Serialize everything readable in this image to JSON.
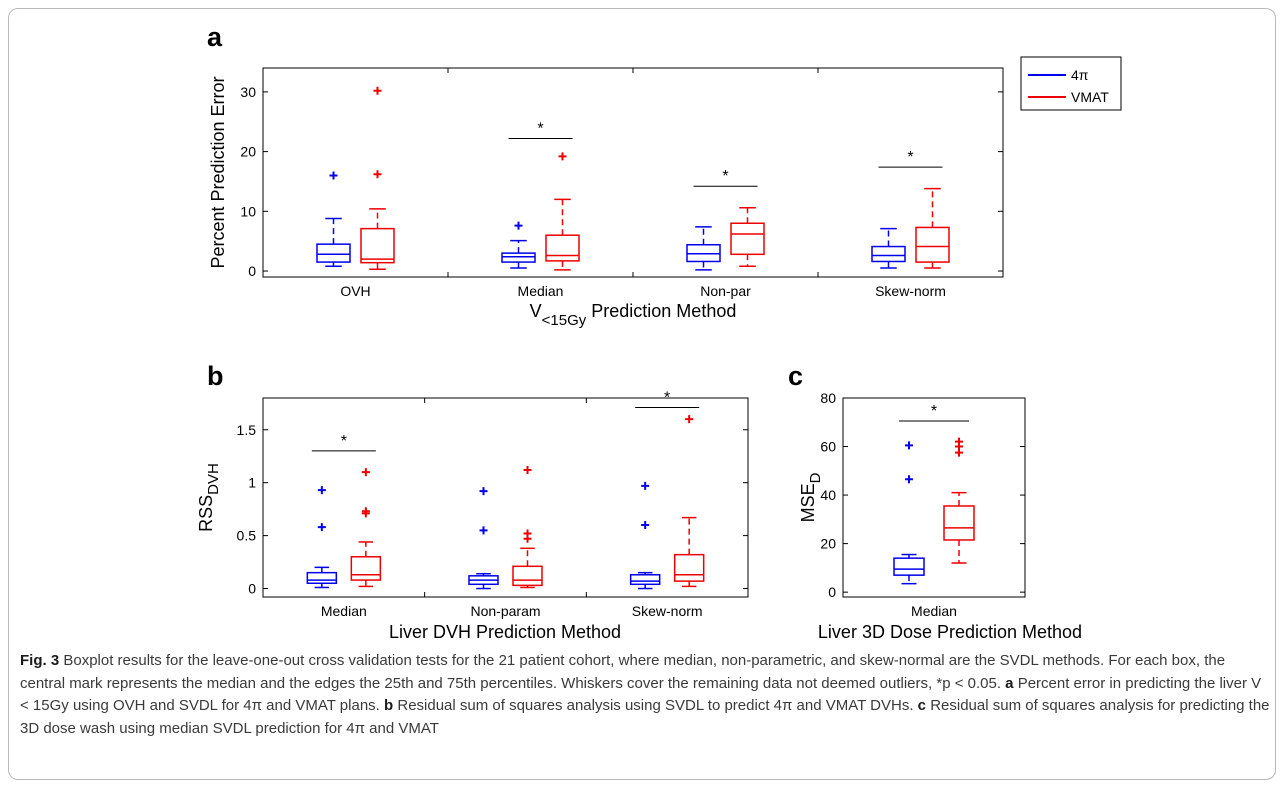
{
  "colors": {
    "pi4": "#0000ee",
    "vmat": "#ee0000",
    "axis": "#000000",
    "caption_text": "#3a3a3a"
  },
  "legend": {
    "items": [
      {
        "name": "4π",
        "color": "#0000ee"
      },
      {
        "name": "VMAT",
        "color": "#ee0000"
      }
    ]
  },
  "caption": {
    "fig_label": "Fig. 3",
    "text": "Boxplot results for the leave-one-out cross validation tests for the 21 patient cohort, where median, non-parametric, and skew-normal are the SVDL methods. For each box, the central mark represents the median and the edges the 25th and 75th percentiles. Whiskers cover the remaining data not deemed outliers, *p < 0.05.",
    "part_a_label": "a",
    "part_a_text": "Percent error in predicting the liver V < 15Gy using OVH and SVDL for 4π and VMAT plans.",
    "part_b_label": "b",
    "part_b_text": "Residual sum of squares analysis using SVDL to predict 4π and VMAT DVHs.",
    "part_c_label": "c",
    "part_c_text": "Residual sum of squares analysis for predicting the 3D dose wash using median SVDL prediction for 4π and VMAT"
  },
  "chart_data": [
    {
      "panel": "a",
      "type": "boxplot",
      "ylabel": "Percent Prediction Error",
      "xlabel": "V<15Gy Prediction Method",
      "xlabel_main": "V",
      "xlabel_sub": "<15Gy",
      "xlabel_rest": " Prediction Method",
      "ylim": [
        -1,
        34
      ],
      "yticks": [
        0,
        10,
        20,
        30
      ],
      "categories": [
        "OVH",
        "Median",
        "Non-par",
        "Skew-norm"
      ],
      "series": [
        {
          "name": "4π",
          "boxes": [
            {
              "min": 0.8,
              "q1": 1.5,
              "median": 2.8,
              "q3": 4.5,
              "max": 8.8,
              "outliers": [
                16
              ]
            },
            {
              "min": 0.5,
              "q1": 1.5,
              "median": 2.4,
              "q3": 3.0,
              "max": 5.1,
              "outliers": [
                7.6
              ]
            },
            {
              "min": 0.2,
              "q1": 1.6,
              "median": 2.9,
              "q3": 4.4,
              "max": 7.4,
              "outliers": []
            },
            {
              "min": 0.5,
              "q1": 1.6,
              "median": 2.6,
              "q3": 4.1,
              "max": 7.1,
              "outliers": []
            }
          ]
        },
        {
          "name": "VMAT",
          "boxes": [
            {
              "min": 0.3,
              "q1": 1.4,
              "median": 2.0,
              "q3": 7.1,
              "max": 10.4,
              "outliers": [
                16.2,
                30.2
              ]
            },
            {
              "min": 0.2,
              "q1": 1.7,
              "median": 2.6,
              "q3": 6.0,
              "max": 12.0,
              "outliers": [
                19.2
              ]
            },
            {
              "min": 0.8,
              "q1": 2.8,
              "median": 6.2,
              "q3": 8.0,
              "max": 10.6,
              "outliers": []
            },
            {
              "min": 0.5,
              "q1": 1.5,
              "median": 4.1,
              "q3": 7.3,
              "max": 13.8,
              "outliers": []
            }
          ]
        }
      ],
      "significance": [
        {
          "category": "Median",
          "level": 22.2
        },
        {
          "category": "Non-par",
          "level": 14.2
        },
        {
          "category": "Skew-norm",
          "level": 17.4
        }
      ],
      "sig_marker": "*"
    },
    {
      "panel": "b",
      "type": "boxplot",
      "ylabel": "RSS_DVH",
      "ylabel_main": "RSS",
      "ylabel_sub": "DVH",
      "xlabel": "Liver DVH Prediction Method",
      "ylim": [
        -0.08,
        1.8
      ],
      "yticks": [
        0,
        0.5,
        1,
        1.5
      ],
      "categories": [
        "Median",
        "Non-param",
        "Skew-norm"
      ],
      "series": [
        {
          "name": "4π",
          "boxes": [
            {
              "min": 0.01,
              "q1": 0.05,
              "median": 0.08,
              "q3": 0.15,
              "max": 0.2,
              "outliers": [
                0.58,
                0.93
              ]
            },
            {
              "min": 0.0,
              "q1": 0.04,
              "median": 0.08,
              "q3": 0.12,
              "max": 0.14,
              "outliers": [
                0.55,
                0.92
              ]
            },
            {
              "min": 0.0,
              "q1": 0.04,
              "median": 0.07,
              "q3": 0.13,
              "max": 0.15,
              "outliers": [
                0.6,
                0.97
              ]
            }
          ]
        },
        {
          "name": "VMAT",
          "boxes": [
            {
              "min": 0.02,
              "q1": 0.08,
              "median": 0.13,
              "q3": 0.3,
              "max": 0.44,
              "outliers": [
                0.71,
                0.73,
                1.1
              ]
            },
            {
              "min": 0.01,
              "q1": 0.03,
              "median": 0.08,
              "q3": 0.21,
              "max": 0.38,
              "outliers": [
                0.47,
                0.52,
                1.12
              ]
            },
            {
              "min": 0.02,
              "q1": 0.07,
              "median": 0.13,
              "q3": 0.32,
              "max": 0.67,
              "outliers": [
                1.6
              ]
            }
          ]
        }
      ],
      "significance": [
        {
          "category": "Median",
          "level": 1.3
        },
        {
          "category": "Skew-norm",
          "level": 1.71
        }
      ],
      "sig_marker": "*"
    },
    {
      "panel": "c",
      "type": "boxplot",
      "ylabel": "MSE_D",
      "ylabel_main": "MSE",
      "ylabel_sub": "D",
      "xlabel": "Liver 3D Dose Prediction Method",
      "ylim": [
        -2,
        80
      ],
      "yticks": [
        0,
        20,
        40,
        60,
        80
      ],
      "categories": [
        "Median"
      ],
      "series": [
        {
          "name": "4π",
          "boxes": [
            {
              "min": 3.5,
              "q1": 7.0,
              "median": 9.5,
              "q3": 14.0,
              "max": 15.5,
              "outliers": [
                46.5,
                60.5
              ]
            }
          ]
        },
        {
          "name": "VMAT",
          "boxes": [
            {
              "min": 12.0,
              "q1": 21.5,
              "median": 26.5,
              "q3": 35.5,
              "max": 41.0,
              "outliers": [
                57.5,
                60.0,
                62.0
              ]
            }
          ]
        }
      ],
      "significance": [
        {
          "category": "Median",
          "level": 70.5
        }
      ],
      "sig_marker": "*"
    }
  ],
  "panel_letters": [
    "a",
    "b",
    "c"
  ]
}
